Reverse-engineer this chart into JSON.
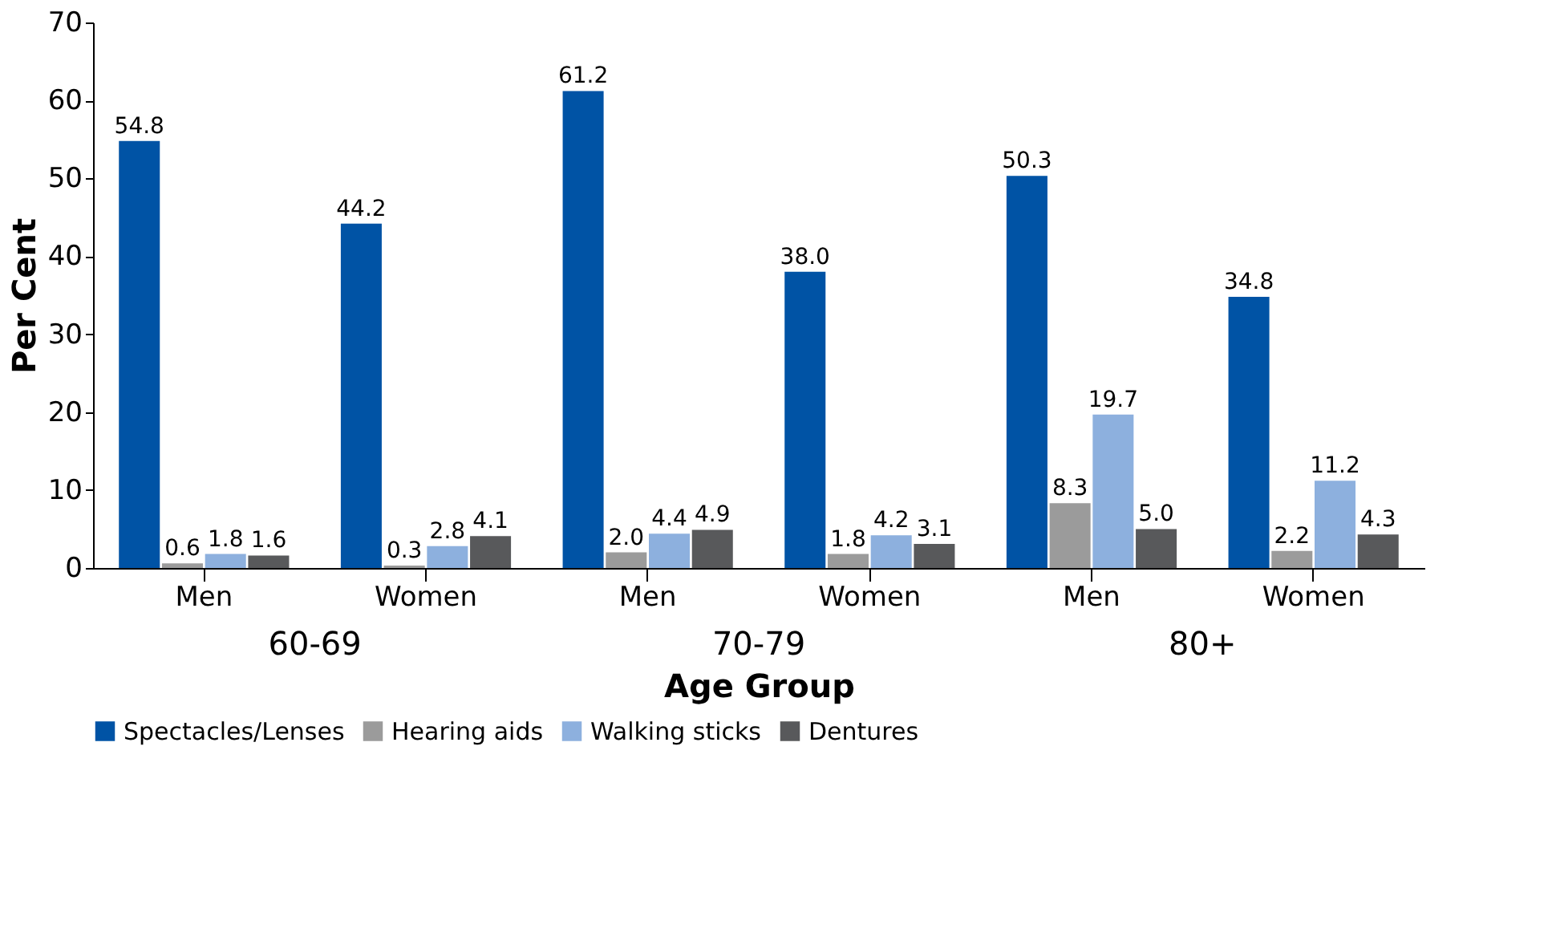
{
  "chart_data": {
    "type": "bar",
    "xlabel": "Age Group",
    "ylabel": "Per Cent",
    "categories": [
      "Men",
      "Women",
      "Men",
      "Women",
      "Men",
      "Women"
    ],
    "annotations": [
      "60-69",
      "70-79",
      "80+"
    ],
    "series": [
      {
        "name": "Spectacles/Lenses",
        "color": "#0053a5",
        "values": [
          54.8,
          44.2,
          61.2,
          38.0,
          50.3,
          34.8
        ],
        "value_labels": [
          "54.8",
          "44.2",
          "61.2",
          "38.0",
          "50.3",
          "34.8"
        ]
      },
      {
        "name": "Hearing aids",
        "color": "#9b9b9b",
        "values": [
          0.6,
          0.3,
          2.0,
          1.8,
          8.3,
          2.2
        ],
        "value_labels": [
          "0.6",
          "0.3",
          "2.0",
          "1.8",
          "8.3",
          "2.2"
        ]
      },
      {
        "name": "Walking sticks",
        "color": "#8db0de",
        "values": [
          1.8,
          2.8,
          4.4,
          4.2,
          19.7,
          11.2
        ],
        "value_labels": [
          "1.8",
          "2.8",
          "4.4",
          "4.2",
          "19.7",
          "11.2"
        ]
      },
      {
        "name": "Dentures",
        "color": "#58595b",
        "values": [
          1.6,
          4.1,
          4.9,
          3.1,
          5.0,
          4.3
        ],
        "value_labels": [
          "1.6",
          "4.1",
          "4.9",
          "3.1",
          "5.0",
          "4.3"
        ]
      }
    ],
    "ylim": [
      0,
      70
    ],
    "yticks": [
      0,
      10,
      20,
      30,
      40,
      50,
      60,
      70
    ],
    "grid": false,
    "legend": "bottom"
  }
}
